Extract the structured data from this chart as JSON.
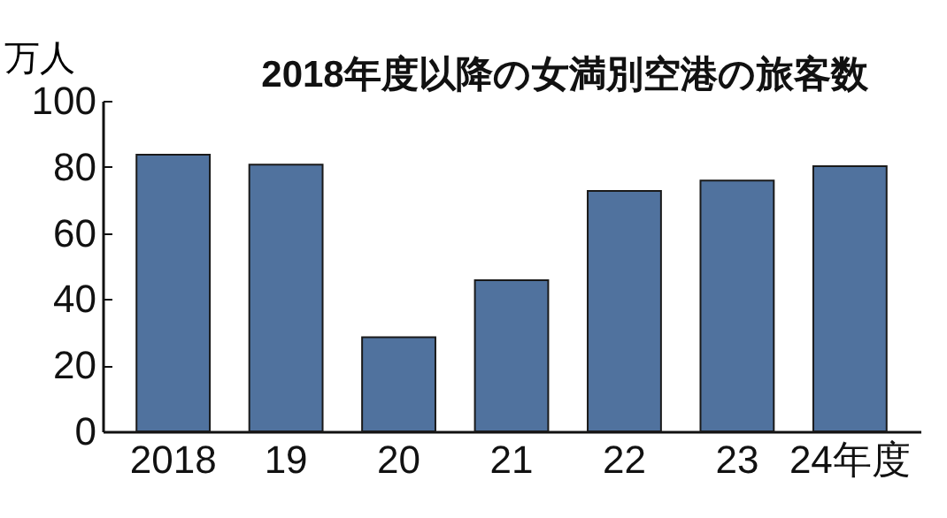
{
  "chart_data": {
    "type": "bar",
    "title": "2018年度以降の女満別空港の旅客数",
    "ylabel": "万人",
    "categories": [
      "2018",
      "19",
      "20",
      "21",
      "22",
      "23",
      "24年度"
    ],
    "values": [
      83.7,
      80.7,
      28.5,
      45.7,
      72.7,
      75.9,
      80.2
    ],
    "color": "#50729e",
    "ylim": [
      0,
      100
    ],
    "yticks": [
      0,
      20,
      40,
      60,
      80,
      100
    ]
  }
}
